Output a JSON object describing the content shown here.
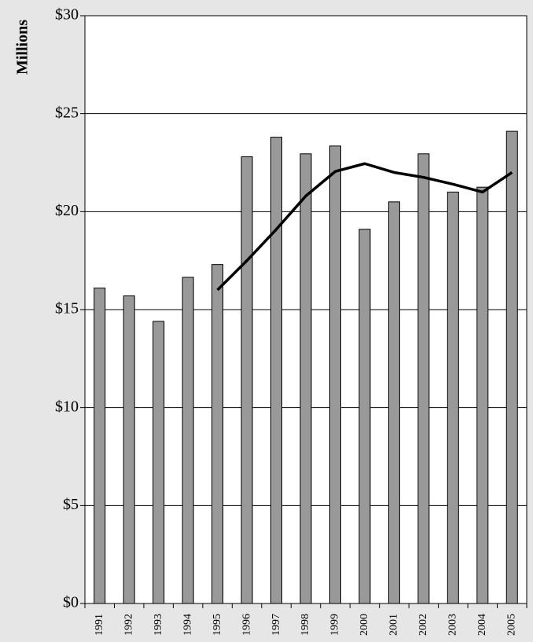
{
  "chart_data": {
    "type": "bar",
    "y_label": "Millions",
    "categories": [
      "1991",
      "1992",
      "1993",
      "1994",
      "1995",
      "1996",
      "1997",
      "1998",
      "1999",
      "2000",
      "2001",
      "2002",
      "2003",
      "2004",
      "2005"
    ],
    "series": [
      {
        "type": "bar",
        "color": "#999999",
        "values": [
          16.1,
          15.7,
          14.4,
          16.65,
          17.3,
          22.8,
          23.8,
          22.95,
          23.35,
          19.1,
          20.5,
          22.95,
          21.0,
          21.25,
          24.1
        ]
      },
      {
        "type": "line",
        "color": "#000000",
        "values": [
          null,
          null,
          null,
          null,
          16.0,
          17.5,
          19.1,
          20.8,
          22.05,
          22.45,
          22.0,
          21.75,
          21.4,
          21.0,
          22.0
        ]
      }
    ],
    "ylim": [
      0,
      30
    ],
    "yticks": [
      {
        "value": 0,
        "label": "$0"
      },
      {
        "value": 5,
        "label": "$5"
      },
      {
        "value": 10,
        "label": "$10"
      },
      {
        "value": 15,
        "label": "$15"
      },
      {
        "value": 20,
        "label": "$20"
      },
      {
        "value": 25,
        "label": "$25"
      },
      {
        "value": 30,
        "label": "$30"
      }
    ],
    "grid": true
  }
}
